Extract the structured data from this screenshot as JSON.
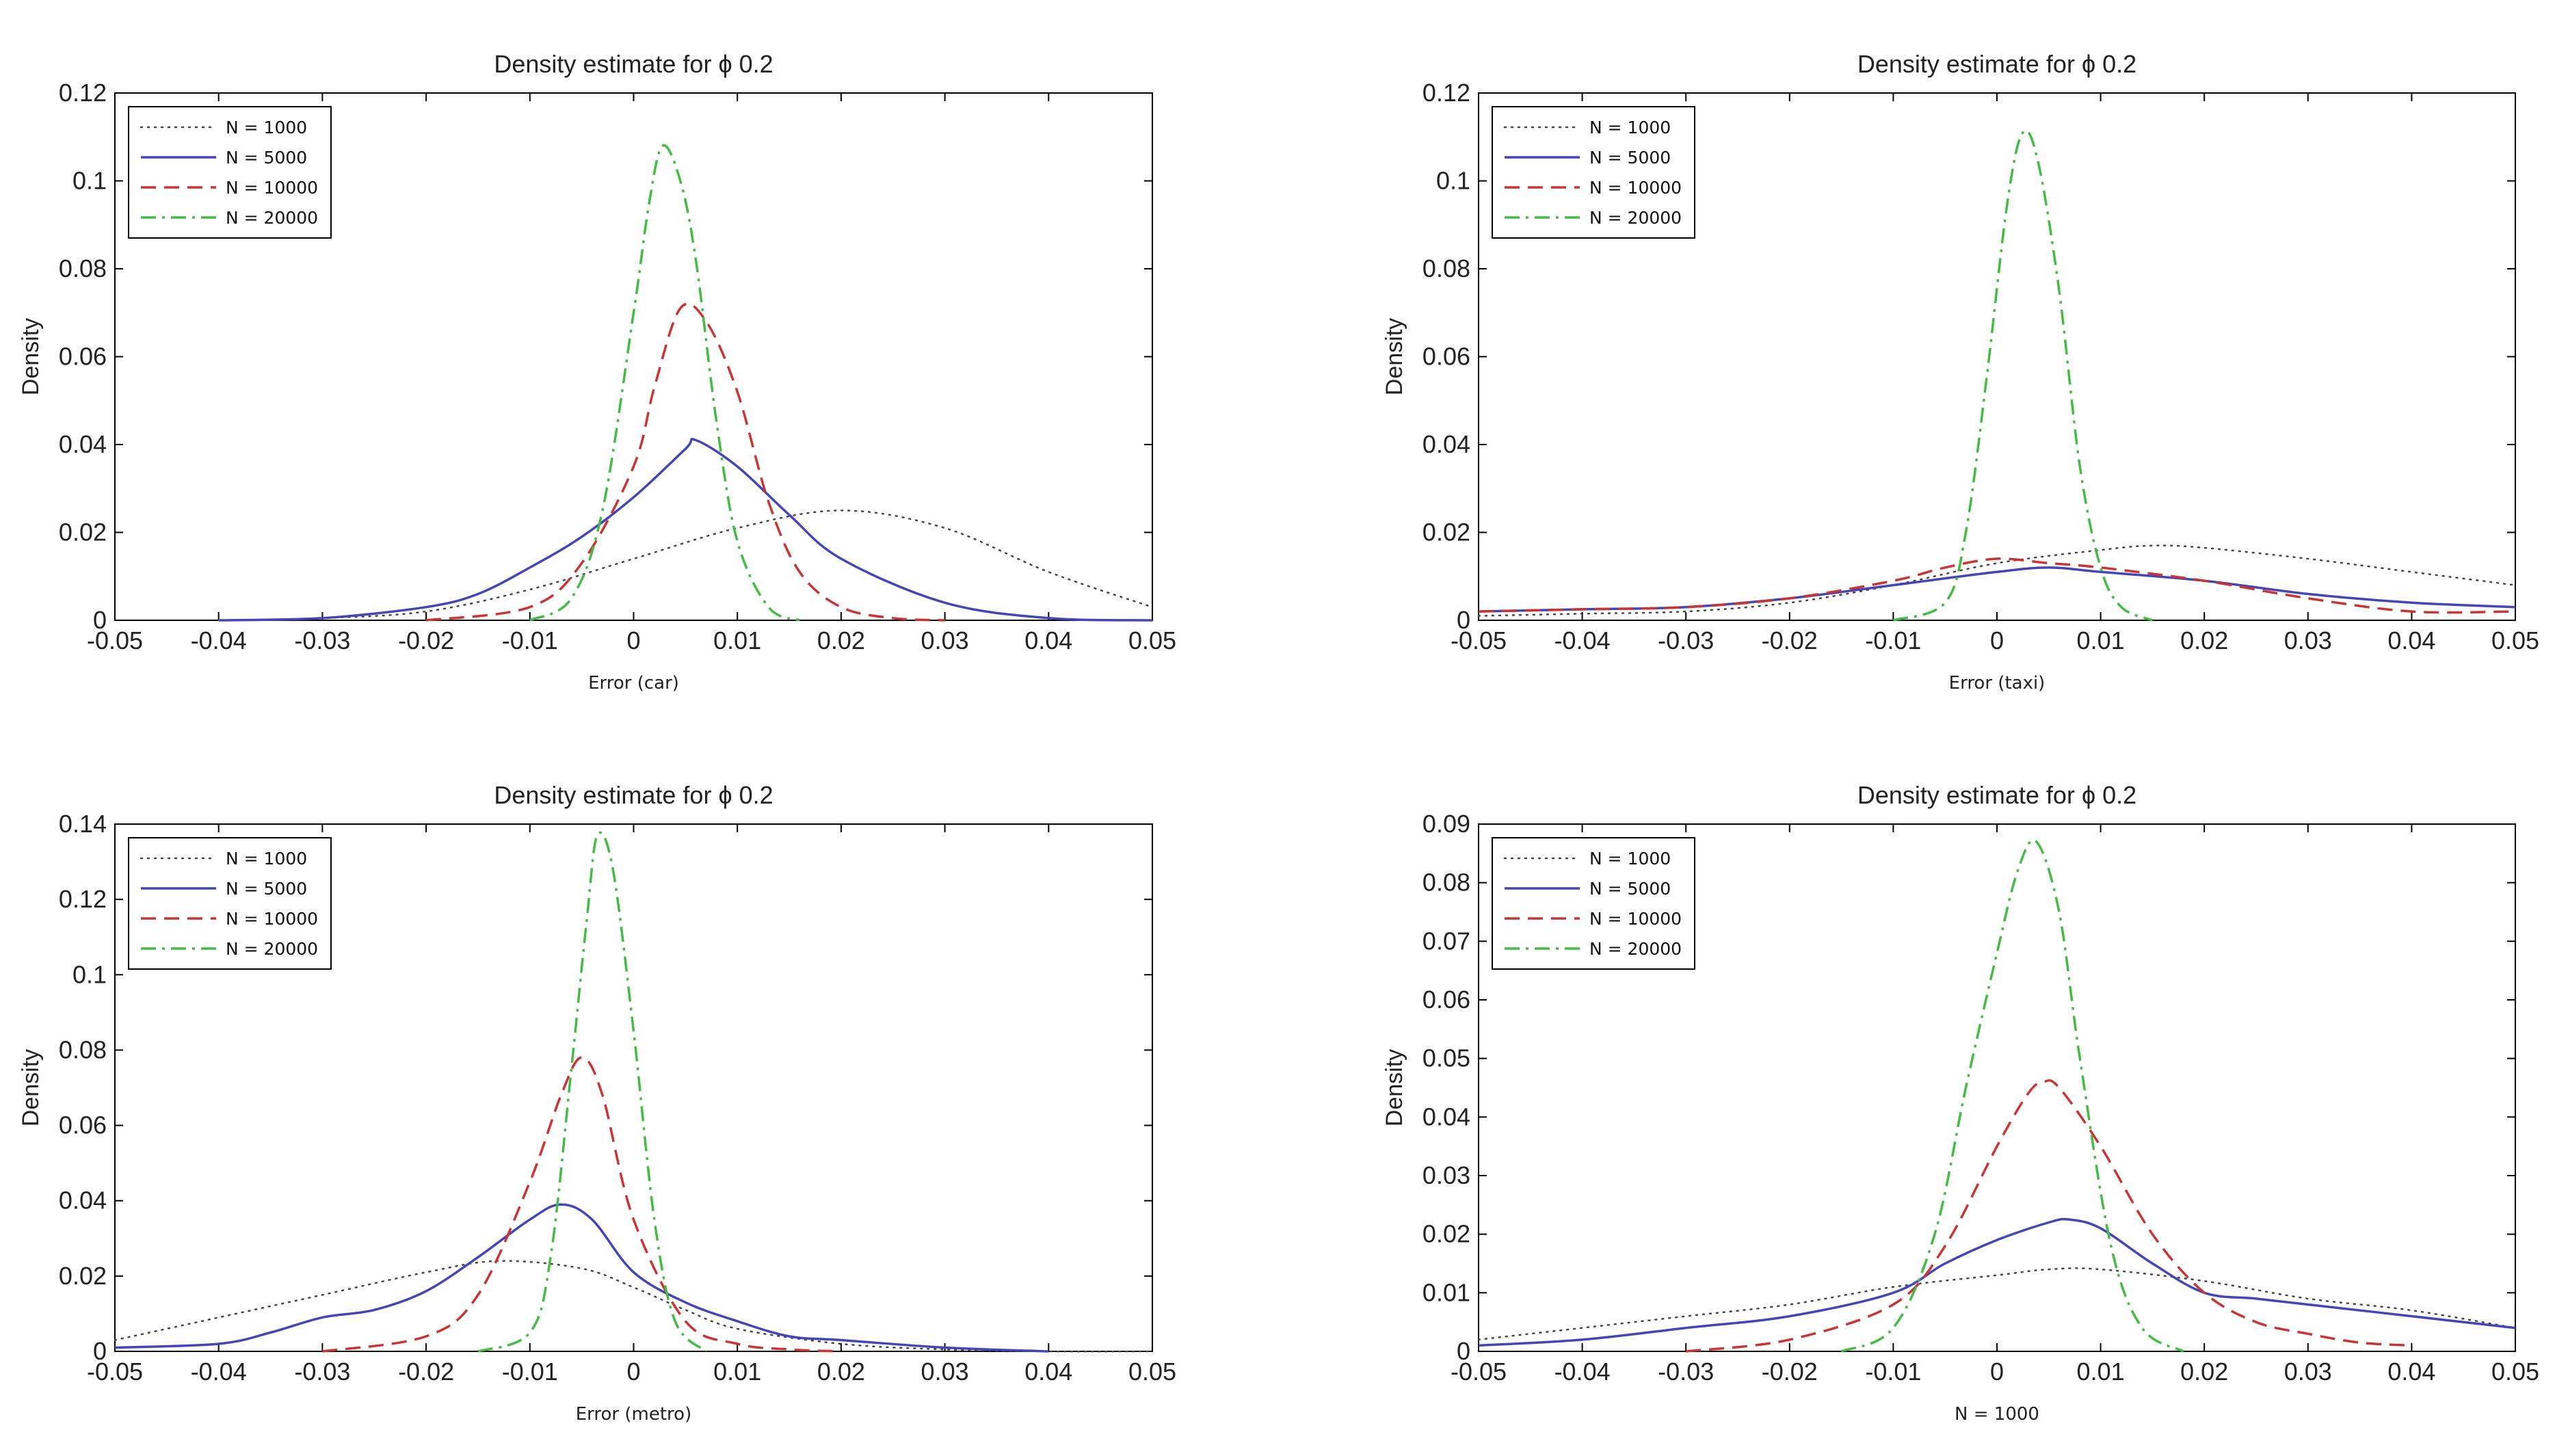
{
  "chart_data": [
    {
      "type": "line",
      "title": "Density estimate for ϕ 0.2",
      "xlabel": "Error (car)",
      "ylabel": "Density",
      "xlim": [
        -0.05,
        0.05
      ],
      "ylim": [
        0,
        0.12
      ],
      "x_ticks": [
        -0.05,
        -0.04,
        -0.03,
        -0.02,
        -0.01,
        0,
        0.01,
        0.02,
        0.03,
        0.04,
        0.05
      ],
      "x_tick_labels": [
        "-0.05",
        "-0.04",
        "-0.03",
        "-0.02",
        "-0.01",
        "0",
        "0.01",
        "0.02",
        "0.03",
        "0.04",
        "0.05"
      ],
      "y_ticks": [
        0,
        0.02,
        0.04,
        0.06,
        0.08,
        0.1,
        0.12
      ],
      "y_tick_labels": [
        "0",
        "0.02",
        "0.04",
        "0.06",
        "0.08",
        "0.1",
        "0.12"
      ],
      "legend": "top-left",
      "series": [
        {
          "name": "N = 1000",
          "style": "dotted",
          "color": "#444444",
          "x": [
            -0.04,
            -0.03,
            -0.02,
            -0.01,
            0,
            0.01,
            0.02,
            0.03,
            0.04,
            0.05
          ],
          "y": [
            0,
            0.0005,
            0.002,
            0.007,
            0.014,
            0.021,
            0.025,
            0.021,
            0.011,
            0.003
          ]
        },
        {
          "name": "N = 5000",
          "style": "solid",
          "color": "#4444bb",
          "x": [
            -0.04,
            -0.03,
            -0.02,
            -0.015,
            -0.01,
            -0.005,
            0,
            0.005,
            0.006,
            0.01,
            0.015,
            0.02,
            0.03,
            0.04,
            0.05
          ],
          "y": [
            0,
            0.0005,
            0.003,
            0.006,
            0.012,
            0.019,
            0.028,
            0.039,
            0.041,
            0.035,
            0.024,
            0.014,
            0.004,
            0.0005,
            0
          ]
        },
        {
          "name": "N = 10000",
          "style": "dashed",
          "color": "#cc3333",
          "x": [
            -0.02,
            -0.01,
            -0.005,
            0,
            0.002,
            0.0045,
            0.007,
            0.01,
            0.013,
            0.016,
            0.02,
            0.025,
            0.03
          ],
          "y": [
            0,
            0.003,
            0.013,
            0.035,
            0.053,
            0.071,
            0.068,
            0.052,
            0.027,
            0.011,
            0.003,
            0.0005,
            0
          ]
        },
        {
          "name": "N = 20000",
          "style": "dashdot",
          "color": "#44bb44",
          "x": [
            -0.01,
            -0.006,
            -0.003,
            0,
            0.0015,
            0.0028,
            0.0045,
            0.006,
            0.008,
            0.01,
            0.013,
            0.016
          ],
          "y": [
            0,
            0.005,
            0.025,
            0.07,
            0.095,
            0.108,
            0.1,
            0.082,
            0.045,
            0.018,
            0.003,
            0
          ]
        }
      ]
    },
    {
      "type": "line",
      "title": "Density estimate for ϕ 0.2",
      "xlabel": "Error (taxi)",
      "ylabel": "Density",
      "xlim": [
        -0.05,
        0.05
      ],
      "ylim": [
        0,
        0.12
      ],
      "x_ticks": [
        -0.05,
        -0.04,
        -0.03,
        -0.02,
        -0.01,
        0,
        0.01,
        0.02,
        0.03,
        0.04,
        0.05
      ],
      "x_tick_labels": [
        "-0.05",
        "-0.04",
        "-0.03",
        "-0.02",
        "-0.01",
        "0",
        "0.01",
        "0.02",
        "0.03",
        "0.04",
        "0.05"
      ],
      "y_ticks": [
        0,
        0.02,
        0.04,
        0.06,
        0.08,
        0.1,
        0.12
      ],
      "y_tick_labels": [
        "0",
        "0.02",
        "0.04",
        "0.06",
        "0.08",
        "0.1",
        "0.12"
      ],
      "legend": "top-left",
      "series": [
        {
          "name": "N = 1000",
          "style": "dotted",
          "color": "#444444",
          "x": [
            -0.05,
            -0.04,
            -0.03,
            -0.02,
            -0.01,
            0,
            0.01,
            0.015,
            0.02,
            0.03,
            0.04,
            0.05
          ],
          "y": [
            0.001,
            0.0015,
            0.002,
            0.004,
            0.008,
            0.013,
            0.016,
            0.017,
            0.0165,
            0.014,
            0.011,
            0.008
          ]
        },
        {
          "name": "N = 5000",
          "style": "solid",
          "color": "#4444bb",
          "x": [
            -0.05,
            -0.04,
            -0.03,
            -0.02,
            -0.01,
            0,
            0.005,
            0.01,
            0.02,
            0.03,
            0.04,
            0.05
          ],
          "y": [
            0.002,
            0.0025,
            0.003,
            0.005,
            0.008,
            0.011,
            0.012,
            0.011,
            0.009,
            0.006,
            0.004,
            0.003
          ]
        },
        {
          "name": "N = 10000",
          "style": "dashed",
          "color": "#cc3333",
          "x": [
            -0.05,
            -0.04,
            -0.03,
            -0.02,
            -0.01,
            -0.005,
            0,
            0.005,
            0.01,
            0.02,
            0.03,
            0.04,
            0.05
          ],
          "y": [
            0.002,
            0.0025,
            0.003,
            0.005,
            0.009,
            0.012,
            0.014,
            0.013,
            0.012,
            0.009,
            0.005,
            0.002,
            0.002
          ]
        },
        {
          "name": "N = 20000",
          "style": "dashdot",
          "color": "#44bb44",
          "x": [
            -0.01,
            -0.005,
            -0.003,
            -0.001,
            0.001,
            0.0025,
            0.004,
            0.006,
            0.008,
            0.01,
            0.012,
            0.015
          ],
          "y": [
            0,
            0.004,
            0.02,
            0.055,
            0.095,
            0.111,
            0.104,
            0.075,
            0.035,
            0.012,
            0.003,
            0
          ]
        }
      ]
    },
    {
      "type": "line",
      "title": "Density estimate for ϕ 0.2",
      "xlabel": "Error (metro)",
      "ylabel": "Density",
      "xlim": [
        -0.05,
        0.05
      ],
      "ylim": [
        0,
        0.14
      ],
      "x_ticks": [
        -0.05,
        -0.04,
        -0.03,
        -0.02,
        -0.01,
        0,
        0.01,
        0.02,
        0.03,
        0.04,
        0.05
      ],
      "x_tick_labels": [
        "-0.05",
        "-0.04",
        "-0.03",
        "-0.02",
        "-0.01",
        "0",
        "0.01",
        "0.02",
        "0.03",
        "0.04",
        "0.05"
      ],
      "y_ticks": [
        0,
        0.02,
        0.04,
        0.06,
        0.08,
        0.1,
        0.12,
        0.14
      ],
      "y_tick_labels": [
        "0",
        "0.02",
        "0.04",
        "0.06",
        "0.08",
        "0.1",
        "0.12",
        "0.14"
      ],
      "legend": "top-left",
      "series": [
        {
          "name": "N = 1000",
          "style": "dotted",
          "color": "#444444",
          "x": [
            -0.05,
            -0.04,
            -0.03,
            -0.02,
            -0.013,
            -0.005,
            0,
            0.005,
            0.01,
            0.02,
            0.03,
            0.04,
            0.05
          ],
          "y": [
            0.003,
            0.009,
            0.015,
            0.021,
            0.024,
            0.022,
            0.017,
            0.011,
            0.006,
            0.002,
            0.0005,
            0,
            0
          ]
        },
        {
          "name": "N = 5000",
          "style": "solid",
          "color": "#4444bb",
          "x": [
            -0.05,
            -0.04,
            -0.035,
            -0.03,
            -0.025,
            -0.02,
            -0.015,
            -0.01,
            -0.007,
            -0.004,
            0,
            0.005,
            0.01,
            0.015,
            0.02,
            0.03,
            0.04
          ],
          "y": [
            0.001,
            0.002,
            0.005,
            0.009,
            0.011,
            0.016,
            0.025,
            0.035,
            0.039,
            0.035,
            0.021,
            0.013,
            0.008,
            0.004,
            0.003,
            0.001,
            0
          ]
        },
        {
          "name": "N = 10000",
          "style": "dashed",
          "color": "#cc3333",
          "x": [
            -0.03,
            -0.02,
            -0.015,
            -0.01,
            -0.007,
            -0.005,
            -0.003,
            0,
            0.005,
            0.01,
            0.015,
            0.02
          ],
          "y": [
            0,
            0.004,
            0.015,
            0.045,
            0.068,
            0.078,
            0.068,
            0.035,
            0.008,
            0.002,
            0.0005,
            0
          ]
        },
        {
          "name": "N = 20000",
          "style": "dashdot",
          "color": "#44bb44",
          "x": [
            -0.015,
            -0.01,
            -0.008,
            -0.006,
            -0.0045,
            -0.0035,
            -0.002,
            0,
            0.002,
            0.004,
            0.007
          ],
          "y": [
            0,
            0.005,
            0.025,
            0.075,
            0.115,
            0.137,
            0.128,
            0.085,
            0.035,
            0.008,
            0
          ]
        }
      ]
    },
    {
      "type": "line",
      "title": "Density estimate for ϕ 0.2",
      "xlabel": "N = 1000",
      "ylabel": "Density",
      "xlim": [
        -0.05,
        0.05
      ],
      "ylim": [
        0,
        0.09
      ],
      "x_ticks": [
        -0.05,
        -0.04,
        -0.03,
        -0.02,
        -0.01,
        0,
        0.01,
        0.02,
        0.03,
        0.04,
        0.05
      ],
      "x_tick_labels": [
        "-0.05",
        "-0.04",
        "-0.03",
        "-0.02",
        "-0.01",
        "0",
        "0.01",
        "0.02",
        "0.03",
        "0.04",
        "0.05"
      ],
      "y_ticks": [
        0,
        0.01,
        0.02,
        0.03,
        0.04,
        0.05,
        0.06,
        0.07,
        0.08,
        0.09
      ],
      "y_tick_labels": [
        "0",
        "0.01",
        "0.02",
        "0.03",
        "0.04",
        "0.05",
        "0.06",
        "0.07",
        "0.08",
        "0.09"
      ],
      "legend": "top-left",
      "series": [
        {
          "name": "N = 1000",
          "style": "dotted",
          "color": "#444444",
          "x": [
            -0.05,
            -0.04,
            -0.03,
            -0.02,
            -0.01,
            0,
            0.005,
            0.01,
            0.02,
            0.03,
            0.04,
            0.05
          ],
          "y": [
            0.002,
            0.004,
            0.006,
            0.008,
            0.011,
            0.013,
            0.014,
            0.014,
            0.012,
            0.009,
            0.007,
            0.004
          ]
        },
        {
          "name": "N = 5000",
          "style": "solid",
          "color": "#4444bb",
          "x": [
            -0.05,
            -0.04,
            -0.03,
            -0.02,
            -0.01,
            -0.005,
            0,
            0.005,
            0.007,
            0.01,
            0.015,
            0.02,
            0.025,
            0.03,
            0.04,
            0.05
          ],
          "y": [
            0.001,
            0.002,
            0.004,
            0.006,
            0.01,
            0.015,
            0.019,
            0.022,
            0.0225,
            0.021,
            0.015,
            0.01,
            0.009,
            0.008,
            0.006,
            0.004
          ]
        },
        {
          "name": "N = 10000",
          "style": "dashed",
          "color": "#cc3333",
          "x": [
            -0.03,
            -0.02,
            -0.01,
            -0.005,
            0,
            0.003,
            0.0045,
            0.006,
            0.01,
            0.015,
            0.02,
            0.025,
            0.03,
            0.035,
            0.04
          ],
          "y": [
            0,
            0.002,
            0.008,
            0.018,
            0.035,
            0.044,
            0.046,
            0.045,
            0.035,
            0.02,
            0.01,
            0.005,
            0.003,
            0.0015,
            0.001
          ]
        },
        {
          "name": "N = 20000",
          "style": "dashdot",
          "color": "#44bb44",
          "x": [
            -0.015,
            -0.01,
            -0.006,
            -0.003,
            0,
            0.002,
            0.0038,
            0.006,
            0.008,
            0.011,
            0.014,
            0.018
          ],
          "y": [
            0,
            0.004,
            0.02,
            0.045,
            0.068,
            0.082,
            0.087,
            0.075,
            0.05,
            0.018,
            0.004,
            0
          ]
        }
      ]
    }
  ]
}
